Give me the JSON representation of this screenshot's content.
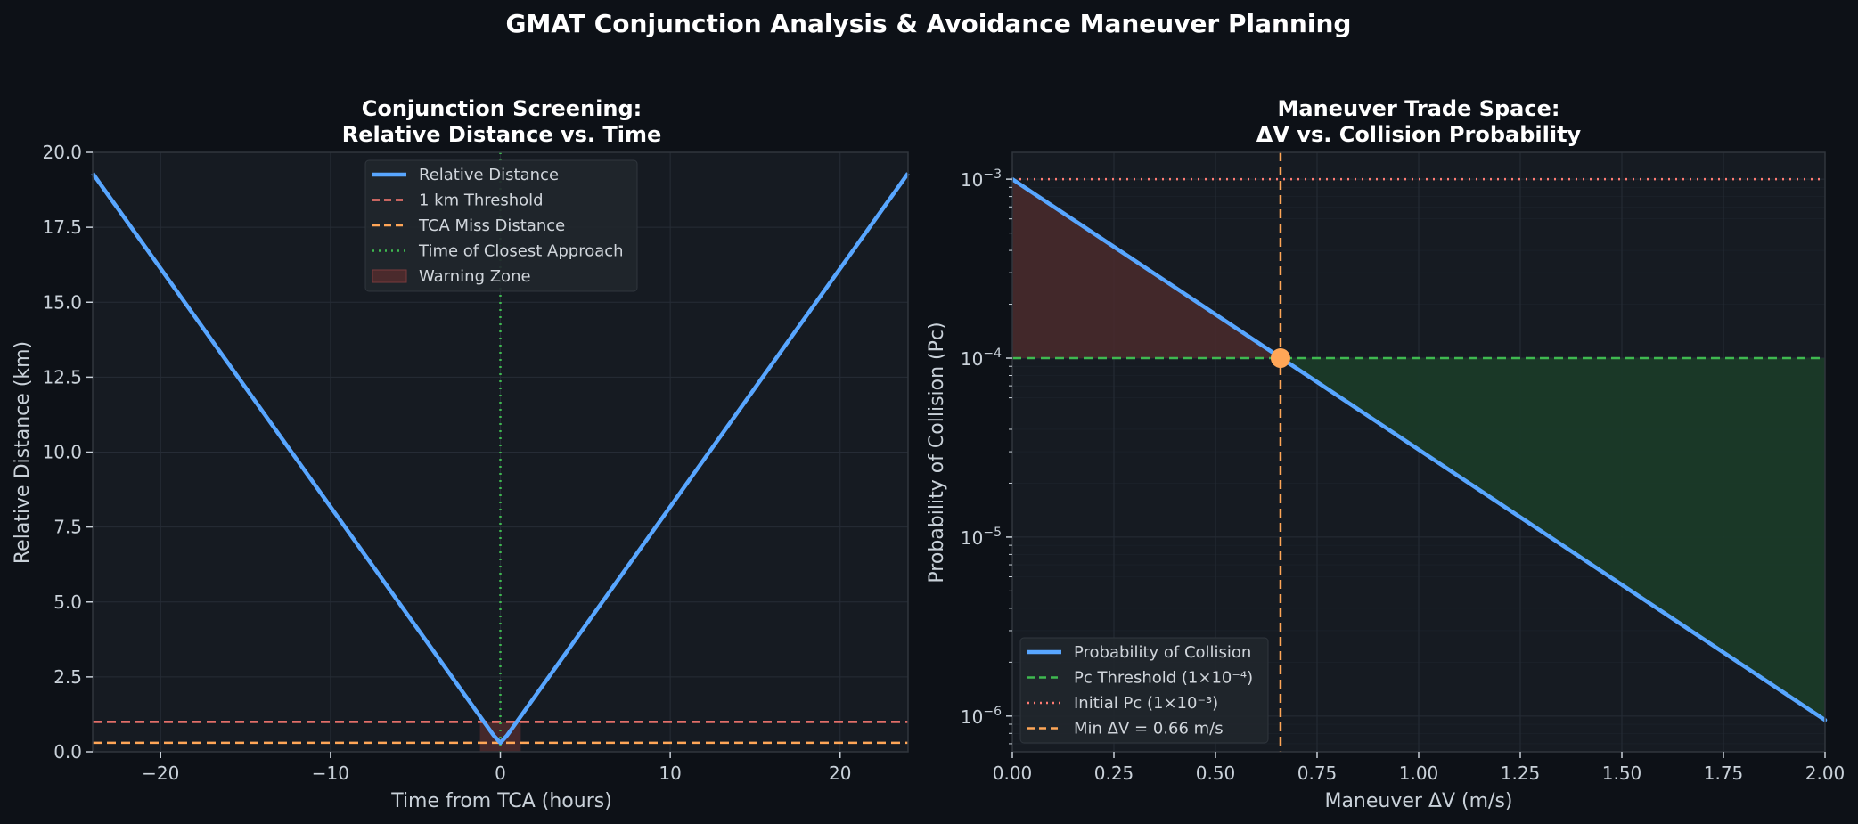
{
  "suptitle": "GMAT Conjunction Analysis & Avoidance Maneuver Planning",
  "colors": {
    "figure_bg": "#0d1117",
    "axes_bg": "#161b22",
    "grid": "#262c36",
    "spine": "#30363d",
    "text": "#c9d1d9",
    "blue": "#58a6ff",
    "red": "#ff7b72",
    "orange": "#ffa657",
    "green": "#3fb950",
    "warn_fill": "#4a2a2c",
    "safe_fill": "#1a3a28"
  },
  "chart_data": [
    {
      "type": "line",
      "title_line1": "Conjunction Screening:",
      "title_line2": "Relative Distance vs. Time",
      "xlabel": "Time from TCA (hours)",
      "ylabel": "Relative Distance (km)",
      "xlim": [
        -24,
        24
      ],
      "ylim": [
        0,
        20
      ],
      "xticks": [
        -20,
        -10,
        0,
        10,
        20
      ],
      "xtick_labels": [
        "−20",
        "−10",
        "0",
        "10",
        "20"
      ],
      "yticks": [
        0,
        2.5,
        5,
        7.5,
        10,
        12.5,
        15,
        17.5,
        20
      ],
      "ytick_labels": [
        "0.0",
        "2.5",
        "5.0",
        "7.5",
        "10.0",
        "12.5",
        "15.0",
        "17.5",
        "20.0"
      ],
      "grid": true,
      "legend_position": "upper center",
      "series": [
        {
          "name": "Relative Distance",
          "style": "solid",
          "color": "#58a6ff",
          "x": [
            -24,
            -0.4,
            0,
            0.4,
            24
          ],
          "y": [
            19.3,
            0.55,
            0.3,
            0.55,
            19.3
          ]
        },
        {
          "name": "1 km Threshold",
          "style": "dashed",
          "color": "#ff7b72",
          "hline": 1.0
        },
        {
          "name": "TCA Miss Distance",
          "style": "dashed",
          "color": "#ffa657",
          "hline": 0.3
        },
        {
          "name": "Time of Closest Approach",
          "style": "dotted",
          "color": "#3fb950",
          "vline": 0
        },
        {
          "name": "Warning Zone",
          "style": "fill",
          "color": "#4a2a2c",
          "x_range": [
            -1.2,
            1.2
          ],
          "y_range": [
            0,
            1.0
          ]
        }
      ]
    },
    {
      "type": "line",
      "title_line1": "Maneuver Trade Space:",
      "title_line2": "ΔV vs. Collision Probability",
      "xlabel": "Maneuver ΔV (m/s)",
      "ylabel": "Probability of Collision (Pc)",
      "xlim": [
        0,
        2.0
      ],
      "ylim_log10": [
        -6.2,
        -2.85
      ],
      "yscale": "log",
      "xticks": [
        0,
        0.25,
        0.5,
        0.75,
        1.0,
        1.25,
        1.5,
        1.75,
        2.0
      ],
      "xtick_labels": [
        "0.00",
        "0.25",
        "0.50",
        "0.75",
        "1.00",
        "1.25",
        "1.50",
        "1.75",
        "2.00"
      ],
      "yticks_log10": [
        -6,
        -5,
        -4,
        -3
      ],
      "ytick_base": "10",
      "ytick_exponents": [
        "−6",
        "−5",
        "−4",
        "−3"
      ],
      "grid": true,
      "legend_position": "lower left",
      "series": [
        {
          "name": "Probability of Collision",
          "style": "solid",
          "color": "#58a6ff",
          "x": [
            0,
            2.0
          ],
          "y": [
            0.001,
            9.5e-07
          ]
        },
        {
          "name": "Pc Threshold (1×10⁻⁴)",
          "style": "dashed",
          "color": "#3fb950",
          "hline": 0.0001
        },
        {
          "name": "Initial Pc (1×10⁻³)",
          "style": "dotted",
          "color": "#ff7b72",
          "hline": 0.001
        },
        {
          "name": "Min ΔV = 0.66 m/s",
          "style": "dashed",
          "color": "#ffa657",
          "vline": 0.66
        }
      ],
      "marker": {
        "x": 0.66,
        "y": 0.0001,
        "color": "#ffa657"
      }
    }
  ]
}
